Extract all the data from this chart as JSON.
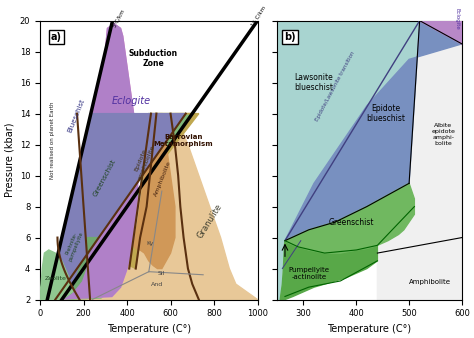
{
  "panel_a": {
    "xlim": [
      0,
      1000
    ],
    "ylim": [
      2,
      20
    ],
    "xticks": [
      0,
      200,
      400,
      600,
      800,
      1000
    ],
    "yticks": [
      2,
      4,
      6,
      8,
      10,
      12,
      14,
      16,
      18,
      20
    ],
    "xlabel": "Temperature (C°)",
    "ylabel": "Pressure (kbar)",
    "geotherm_5_color": "#000000",
    "geotherm_15_color": "#000000",
    "colors": {
      "subduction": "#e890c8",
      "eclogite": "#b080c8",
      "blueschist": "#8080b8",
      "greenschist": "#80b878",
      "prehnite": "#70a870",
      "zeolite": "#90c890",
      "granulite": "#e8c898",
      "epidote_amph": "#c0a850",
      "amphibolite": "#d09858",
      "barrovian": "#e09050"
    },
    "boundary_color": "#5a3010",
    "al2sio5_color": "#888888"
  },
  "panel_b": {
    "xlim": [
      250,
      600
    ],
    "ylim": [
      2,
      20
    ],
    "xticks": [
      300,
      400,
      500,
      600
    ],
    "yticks": [
      2,
      4,
      6,
      8,
      10,
      12,
      14,
      16,
      18,
      20
    ],
    "xlabel": "Temperature (C°)",
    "colors": {
      "lawsonite_blue": "#a8d4d0",
      "epidote_blue": "#7890c0",
      "greenschist": "#70b860",
      "pumpellyite": "#58a848",
      "amphibolite": "#f0f0f0",
      "eclogite": "#b888c8"
    },
    "line_color": "#404080"
  }
}
